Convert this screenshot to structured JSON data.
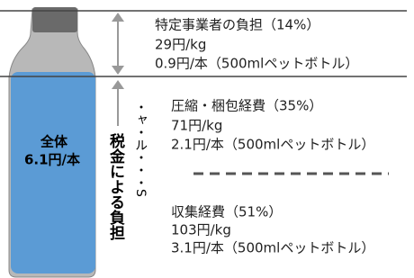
{
  "bottle": {
    "label": "全体",
    "value": "6.1円/本"
  },
  "tax_label": "税金による負担",
  "dotted_text": "・ャ・ル・・・S",
  "sections": [
    {
      "title": "特定事業者の負担（14%）",
      "per_kg": "29円/kg",
      "per_bottle": "0.9円/本（500mlペットボトル）"
    },
    {
      "title": "圧縮・梱包経費（35%）",
      "per_kg": "71円/kg",
      "per_bottle": "2.1円/本（500mlペットボトル）"
    },
    {
      "title": "収集経費（51%）",
      "per_kg": "103円/kg",
      "per_bottle": "3.1円/本（500mlペットボトル）"
    }
  ]
}
